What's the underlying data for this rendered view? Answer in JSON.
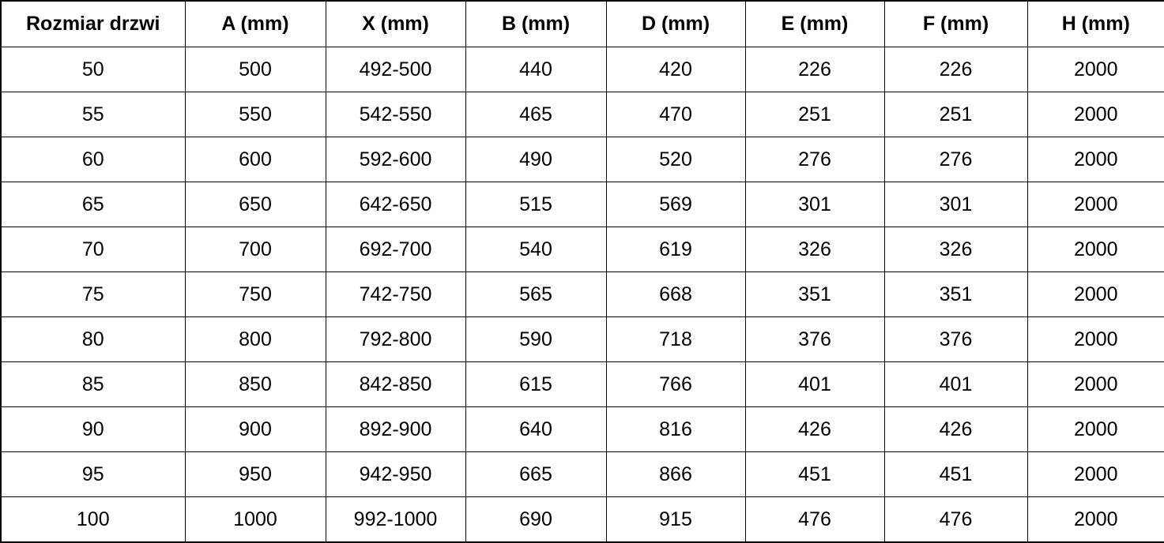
{
  "table": {
    "headers": [
      "Rozmiar drzwi",
      "A (mm)",
      "X (mm)",
      "B (mm)",
      "D (mm)",
      "E (mm)",
      "F (mm)",
      "H (mm)"
    ],
    "rows": [
      [
        "50",
        "500",
        "492-500",
        "440",
        "420",
        "226",
        "226",
        "2000"
      ],
      [
        "55",
        "550",
        "542-550",
        "465",
        "470",
        "251",
        "251",
        "2000"
      ],
      [
        "60",
        "600",
        "592-600",
        "490",
        "520",
        "276",
        "276",
        "2000"
      ],
      [
        "65",
        "650",
        "642-650",
        "515",
        "569",
        "301",
        "301",
        "2000"
      ],
      [
        "70",
        "700",
        "692-700",
        "540",
        "619",
        "326",
        "326",
        "2000"
      ],
      [
        "75",
        "750",
        "742-750",
        "565",
        "668",
        "351",
        "351",
        "2000"
      ],
      [
        "80",
        "800",
        "792-800",
        "590",
        "718",
        "376",
        "376",
        "2000"
      ],
      [
        "85",
        "850",
        "842-850",
        "615",
        "766",
        "401",
        "401",
        "2000"
      ],
      [
        "90",
        "900",
        "892-900",
        "640",
        "816",
        "426",
        "426",
        "2000"
      ],
      [
        "95",
        "950",
        "942-950",
        "665",
        "866",
        "451",
        "451",
        "2000"
      ],
      [
        "100",
        "1000",
        "992-1000",
        "690",
        "915",
        "476",
        "476",
        "2000"
      ]
    ],
    "colors": {
      "border": "#000000",
      "text": "#000000",
      "background": "#ffffff"
    }
  }
}
